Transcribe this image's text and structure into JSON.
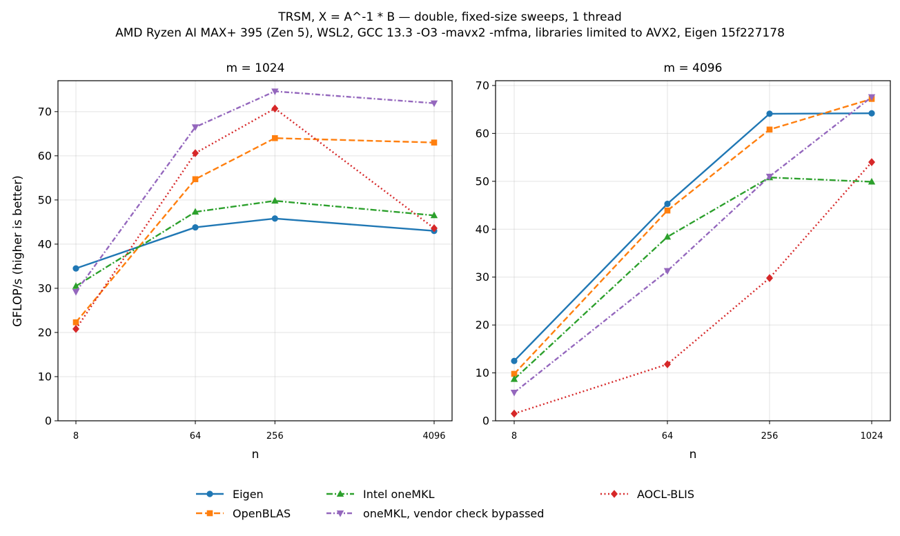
{
  "title_line1": "TRSM, X = A^-1 * B — double, fixed-size sweeps, 1 thread",
  "title_line2": "AMD Ryzen AI MAX+ 395 (Zen 5), WSL2, GCC 13.3 -O3 -mavx2 -mfma, libraries limited to AVX2, Eigen 15f227178",
  "series_styles": [
    {
      "name": "Eigen",
      "color": "#1f77b4",
      "marker": "circle",
      "dash": "solid"
    },
    {
      "name": "OpenBLAS",
      "color": "#ff7f0e",
      "marker": "square",
      "dash": "dashed"
    },
    {
      "name": "Intel oneMKL",
      "color": "#2ca02c",
      "marker": "triangle-up",
      "dash": "dashdot"
    },
    {
      "name": "oneMKL, vendor check bypassed",
      "color": "#9467bd",
      "marker": "triangle-down",
      "dash": "dashdot2"
    },
    {
      "name": "AOCL-BLIS",
      "color": "#d62728",
      "marker": "diamond",
      "dash": "dotted"
    }
  ],
  "legend_position": "bottom-center",
  "chart_data": [
    {
      "type": "line",
      "title": "m = 1024",
      "xlabel": "n",
      "ylabel": "GFLOP/s (higher is better)",
      "x_scale": "log2",
      "x": [
        8,
        64,
        256,
        4096
      ],
      "xtick_labels": [
        "8",
        "64",
        "256",
        "4096"
      ],
      "ylim": [
        0,
        77
      ],
      "yticks": [
        0,
        10,
        20,
        30,
        40,
        50,
        60,
        70
      ],
      "grid": true,
      "series": [
        {
          "name": "Eigen",
          "values": [
            34.5,
            43.8,
            45.8,
            43.0
          ]
        },
        {
          "name": "OpenBLAS",
          "values": [
            22.3,
            54.7,
            64.0,
            63.0
          ]
        },
        {
          "name": "Intel oneMKL",
          "values": [
            30.5,
            47.3,
            49.8,
            46.5
          ]
        },
        {
          "name": "oneMKL, vendor check bypassed",
          "values": [
            29.2,
            66.5,
            74.6,
            71.9
          ]
        },
        {
          "name": "AOCL-BLIS",
          "values": [
            20.8,
            60.6,
            70.7,
            43.6
          ]
        }
      ]
    },
    {
      "type": "line",
      "title": "m = 4096",
      "xlabel": "n",
      "ylabel": "",
      "x_scale": "log2",
      "x": [
        8,
        64,
        256,
        1024
      ],
      "xtick_labels": [
        "8",
        "64",
        "256",
        "1024"
      ],
      "ylim": [
        0,
        71
      ],
      "yticks": [
        0,
        10,
        20,
        30,
        40,
        50,
        60,
        70
      ],
      "grid": true,
      "series": [
        {
          "name": "Eigen",
          "values": [
            12.5,
            45.3,
            64.1,
            64.2
          ]
        },
        {
          "name": "OpenBLAS",
          "values": [
            9.8,
            43.9,
            60.8,
            67.2
          ]
        },
        {
          "name": "Intel oneMKL",
          "values": [
            8.7,
            38.4,
            50.8,
            49.9
          ]
        },
        {
          "name": "oneMKL, vendor check bypassed",
          "values": [
            5.9,
            31.3,
            51.0,
            67.6
          ]
        },
        {
          "name": "AOCL-BLIS",
          "values": [
            1.5,
            11.8,
            29.8,
            54.0
          ]
        }
      ]
    }
  ]
}
